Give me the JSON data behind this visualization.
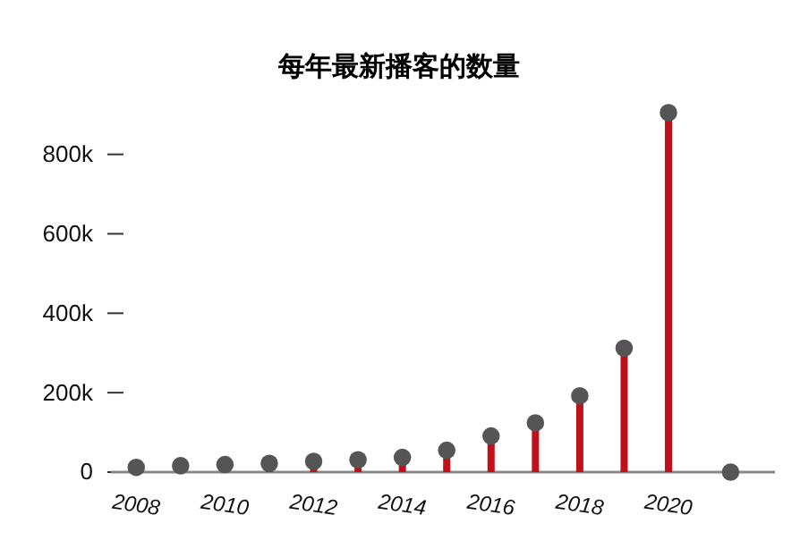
{
  "chart_data": {
    "type": "lollipop",
    "title": "每年最新播客的数量",
    "x": [
      2008,
      2009,
      2010,
      2011,
      2012,
      2013,
      2014,
      2015,
      2016,
      2017,
      2018,
      2019,
      2020,
      2021.4
    ],
    "series": [
      {
        "color": "#555555",
        "values": [
          12000,
          16000,
          19000,
          22000,
          27000,
          31000,
          37000,
          55000,
          91000,
          124000,
          192000,
          312000,
          905000,
          0
        ]
      }
    ],
    "xlim": [
      2007.43,
      2022.4
    ],
    "xticks": [
      2008,
      2010,
      2012,
      2014,
      2016,
      2018,
      2020
    ],
    "ylim": [
      0,
      905000
    ],
    "yticks": [
      {
        "value": 0,
        "label": "0"
      },
      {
        "value": 200000,
        "label": "200k"
      },
      {
        "value": 400000,
        "label": "400k"
      },
      {
        "value": 600000,
        "label": "600k"
      },
      {
        "value": 800000,
        "label": "800k"
      }
    ],
    "marker": "circle",
    "grid": false
  }
}
